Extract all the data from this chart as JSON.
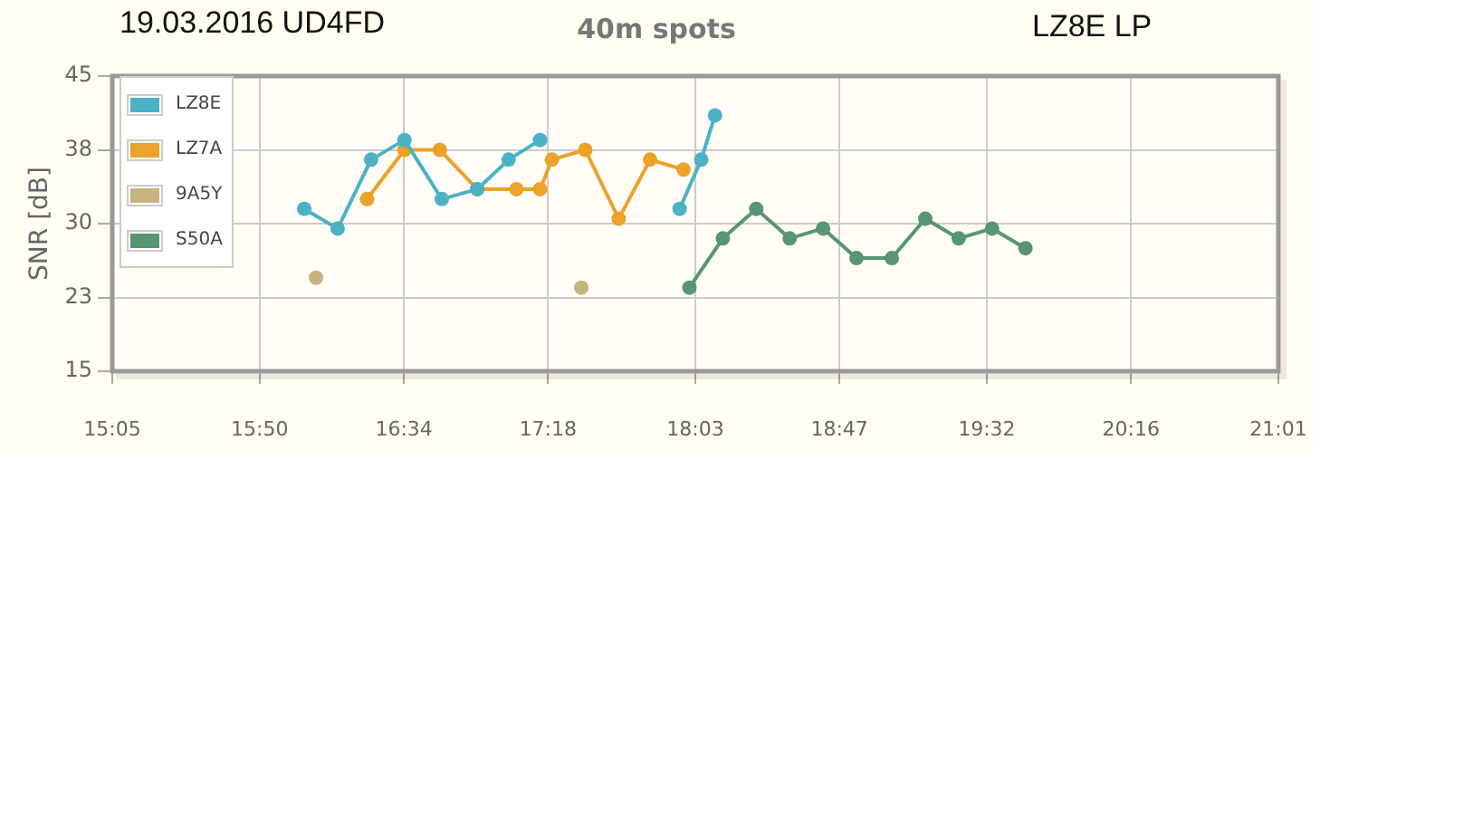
{
  "chart_data": {
    "type": "line",
    "title": "40m spots",
    "ylabel": "SNR [dB]",
    "annotations": [
      "19.03.2016 UD4FD",
      "LZ8E LP"
    ],
    "xlim": [
      15.083,
      21.017
    ],
    "xticks": [
      {
        "value": 15.083,
        "label": "15:05"
      },
      {
        "value": 15.833,
        "label": "15:50"
      },
      {
        "value": 16.567,
        "label": "16:34"
      },
      {
        "value": 17.3,
        "label": "17:18"
      },
      {
        "value": 18.05,
        "label": "18:03"
      },
      {
        "value": 18.783,
        "label": "18:47"
      },
      {
        "value": 19.533,
        "label": "19:32"
      },
      {
        "value": 20.267,
        "label": "20:16"
      },
      {
        "value": 21.017,
        "label": "21:01"
      }
    ],
    "ylim": [
      15,
      45
    ],
    "yticks": [
      15,
      {
        "value": 22.5,
        "label": "23"
      },
      30,
      {
        "value": 37.5,
        "label": "38"
      },
      45
    ],
    "grid": true,
    "legend": "top left",
    "marker": "circle",
    "line_style": "solid",
    "series": [
      {
        "name": "LZ8E",
        "color": "#4bb2c5",
        "x": [
          16.06,
          16.23,
          16.4,
          16.57,
          16.76,
          16.94,
          17.1,
          17.26,
          17.6,
          17.97,
          18.08,
          18.15
        ],
        "values": [
          31.5,
          29.5,
          36.5,
          38.5,
          32.5,
          33.5,
          36.5,
          38.5,
          null,
          31.5,
          36.5,
          41
        ]
      },
      {
        "name": "LZ7A",
        "color": "#eaa228",
        "x": [
          16.38,
          16.57,
          16.75,
          16.94,
          17.14,
          17.26,
          17.32,
          17.49,
          17.66,
          17.82,
          17.99
        ],
        "values": [
          32.5,
          37.5,
          37.5,
          33.5,
          33.5,
          33.5,
          36.5,
          37.5,
          30.5,
          36.5,
          35.5
        ]
      },
      {
        "name": "9A5Y",
        "color": "#c5b47f",
        "type": "scatter",
        "x": [
          16.12,
          17.47
        ],
        "values": [
          24.5,
          23.5
        ]
      },
      {
        "name": "S50A",
        "color": "#579575",
        "x": [
          18.02,
          18.19,
          18.36,
          18.53,
          18.7,
          18.87,
          19.05,
          19.22,
          19.39,
          19.56,
          19.73
        ],
        "values": [
          23.5,
          28.5,
          31.5,
          28.5,
          29.5,
          26.5,
          26.5,
          30.5,
          28.5,
          29.5,
          27.5
        ]
      }
    ]
  }
}
